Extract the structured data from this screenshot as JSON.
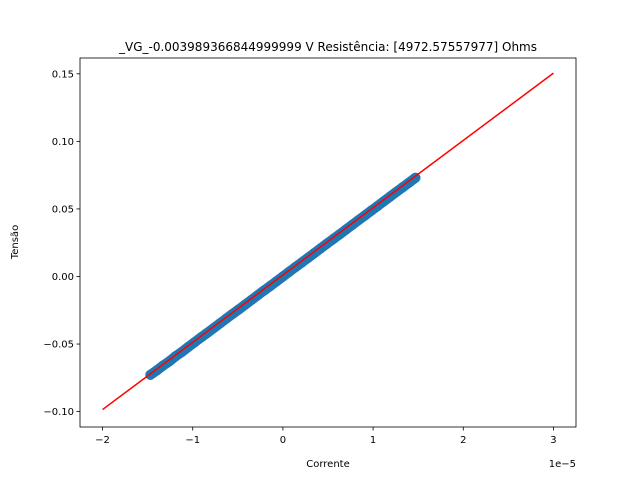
{
  "chart_data": {
    "type": "scatter",
    "title": "_VG_-0.003989366844999999 V  Resistência: [4972.57557977] Ohms",
    "xlabel": "Corrente",
    "ylabel": "Tensão",
    "x_offset_label": "1e−5",
    "x_multiplier": 1e-05,
    "xlim": [
      -2.25,
      3.25
    ],
    "ylim": [
      -0.1114,
      0.1617
    ],
    "x_ticks": [
      -2,
      -1,
      0,
      1,
      2,
      3
    ],
    "x_tick_labels": [
      "−2",
      "−1",
      "0",
      "1",
      "2",
      "3"
    ],
    "y_ticks": [
      -0.1,
      -0.05,
      0.0,
      0.05,
      0.1,
      0.15
    ],
    "y_tick_labels": [
      "−0.10",
      "−0.05",
      "0.00",
      "0.05",
      "0.10",
      "0.15"
    ],
    "grid": false,
    "series": [
      {
        "kind": "scatter",
        "color": "#1f77b4",
        "x_range": [
          -1.47,
          1.47
        ],
        "points": [
          {
            "x": -1.47,
            "y": -0.0728
          },
          {
            "x": -1.4,
            "y": -0.0696
          },
          {
            "x": -1.33,
            "y": -0.066
          },
          {
            "x": -1.26,
            "y": -0.0628
          },
          {
            "x": -1.19,
            "y": -0.059
          },
          {
            "x": -1.12,
            "y": -0.0558
          },
          {
            "x": -1.05,
            "y": -0.0522
          },
          {
            "x": -0.98,
            "y": -0.0487
          },
          {
            "x": -0.91,
            "y": -0.0452
          },
          {
            "x": -0.84,
            "y": -0.0418
          },
          {
            "x": -0.77,
            "y": -0.0383
          },
          {
            "x": -0.7,
            "y": -0.0348
          },
          {
            "x": -0.63,
            "y": -0.0313
          },
          {
            "x": -0.56,
            "y": -0.0278
          },
          {
            "x": -0.49,
            "y": -0.0244
          },
          {
            "x": -0.42,
            "y": -0.0209
          },
          {
            "x": -0.35,
            "y": -0.0174
          },
          {
            "x": -0.28,
            "y": -0.0139
          },
          {
            "x": -0.21,
            "y": -0.0104
          },
          {
            "x": -0.14,
            "y": -0.007
          },
          {
            "x": -0.07,
            "y": -0.0035
          },
          {
            "x": 0.0,
            "y": 0.0
          },
          {
            "x": 0.07,
            "y": 0.0035
          },
          {
            "x": 0.14,
            "y": 0.007
          },
          {
            "x": 0.21,
            "y": 0.0104
          },
          {
            "x": 0.28,
            "y": 0.0139
          },
          {
            "x": 0.35,
            "y": 0.0174
          },
          {
            "x": 0.42,
            "y": 0.0209
          },
          {
            "x": 0.49,
            "y": 0.0244
          },
          {
            "x": 0.56,
            "y": 0.0278
          },
          {
            "x": 0.63,
            "y": 0.0313
          },
          {
            "x": 0.7,
            "y": 0.0348
          },
          {
            "x": 0.77,
            "y": 0.0383
          },
          {
            "x": 0.84,
            "y": 0.0418
          },
          {
            "x": 0.91,
            "y": 0.0452
          },
          {
            "x": 0.98,
            "y": 0.0487
          },
          {
            "x": 1.05,
            "y": 0.0522
          },
          {
            "x": 1.12,
            "y": 0.0557
          },
          {
            "x": 1.19,
            "y": 0.0592
          },
          {
            "x": 1.26,
            "y": 0.0627
          },
          {
            "x": 1.33,
            "y": 0.0661
          },
          {
            "x": 1.4,
            "y": 0.0696
          },
          {
            "x": 1.47,
            "y": 0.0731
          }
        ]
      },
      {
        "kind": "line",
        "color": "#ff0000",
        "x": [
          -2,
          3
        ],
        "y": [
          -0.0985,
          0.1505
        ]
      }
    ]
  }
}
